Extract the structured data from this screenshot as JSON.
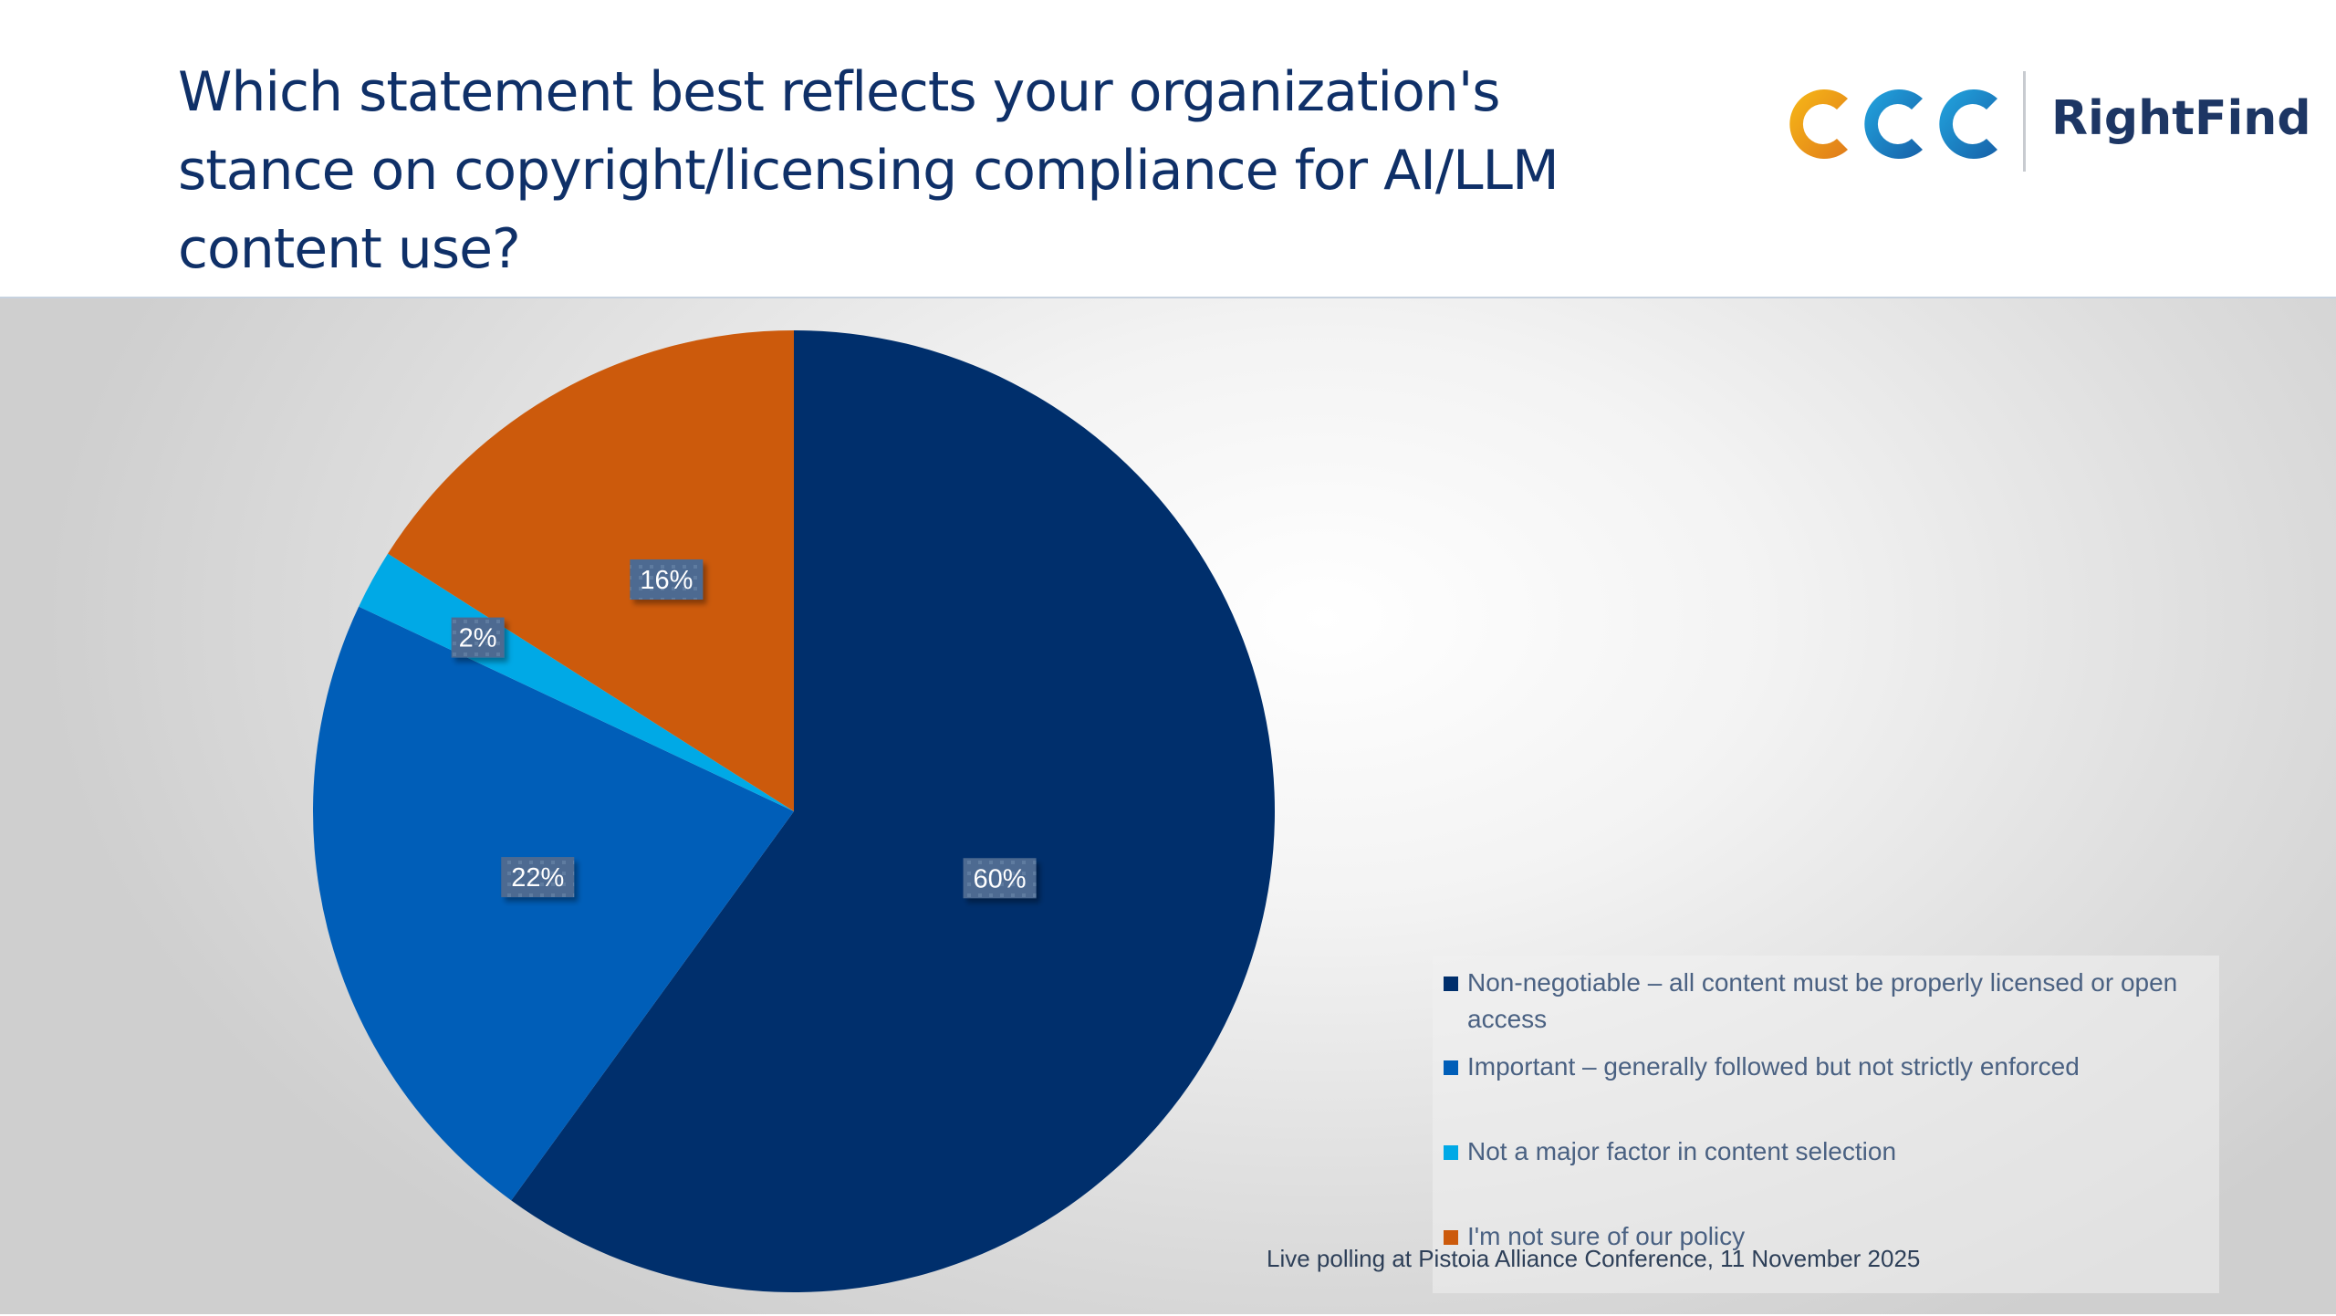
{
  "header": {
    "title": "Which statement best reflects your organization's stance on copyright/licensing compliance for AI/LLM content use?",
    "logo_mark": "CCC",
    "logo_text": "RightFind"
  },
  "footer": {
    "note": "Live polling at Pistoia Alliance Conference, 11 November 2025"
  },
  "chart_data": {
    "type": "pie",
    "title": "Which statement best reflects your organization's stance on copyright/licensing compliance for AI/LLM content use?",
    "legend_position": "right",
    "start_angle_deg": 0,
    "direction": "clockwise",
    "slices": [
      {
        "label": "Non-negotiable – all content must be properly licensed or open access",
        "value": 60,
        "data_label": "60%",
        "color": "#002f6c"
      },
      {
        "label": "Important – generally followed but not strictly enforced",
        "value": 22,
        "data_label": "22%",
        "color": "#005eb8"
      },
      {
        "label": "Not a major factor in content selection",
        "value": 2,
        "data_label": "2%",
        "color": "#00a9e6"
      },
      {
        "label": "I'm not sure of our policy",
        "value": 16,
        "data_label": "16%",
        "color": "#cc5a0c"
      }
    ]
  }
}
